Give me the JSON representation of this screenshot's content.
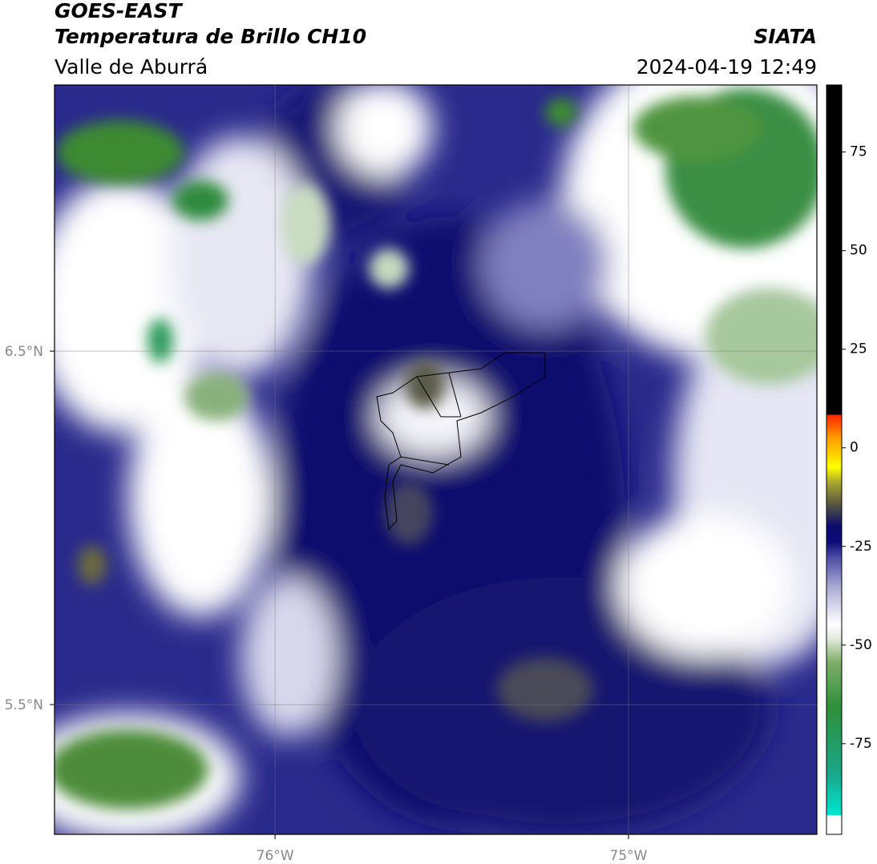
{
  "header": {
    "title": "GOES-EAST",
    "subtitle": "Temperatura de Brillo CH10",
    "region": "Valle de Aburrá",
    "source": "SIATA",
    "timestamp": "2024-04-19 12:49"
  },
  "map": {
    "latlim": [
      5.133,
      7.253
    ],
    "lonlim": [
      -76.624,
      -74.467
    ],
    "lat_ticks": [
      {
        "value": 6.5,
        "label": "6.5°N"
      },
      {
        "value": 5.5,
        "label": "5.5°N"
      }
    ],
    "lon_ticks": [
      {
        "value": -76,
        "label": "76°W"
      },
      {
        "value": -75,
        "label": "75°W"
      }
    ]
  },
  "colorbar": {
    "lim": [
      -98,
      92
    ],
    "ticks": [
      75,
      50,
      25,
      0,
      -25,
      -50,
      -75
    ]
  }
}
